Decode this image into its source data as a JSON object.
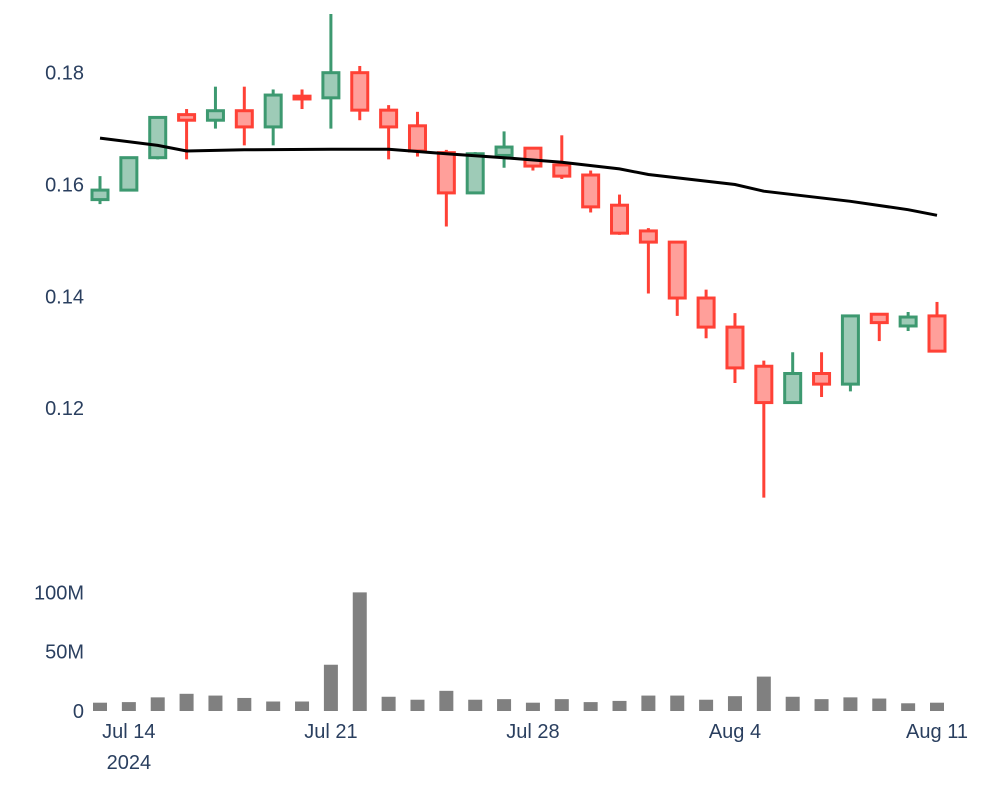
{
  "chart_data": [
    {
      "type": "candlestick",
      "colors": {
        "increasing": "#3d9970",
        "increasing_fill": "#9ecbb7",
        "decreasing": "#ff4136",
        "decreasing_fill": "#ff9f9a",
        "moving_average": "#000000"
      },
      "grid": false,
      "ylim": [
        0.1,
        0.193
      ],
      "y_ticks": [
        {
          "value": 0.12,
          "label": "0.12"
        },
        {
          "value": 0.14,
          "label": "0.14"
        },
        {
          "value": 0.16,
          "label": "0.16"
        },
        {
          "value": 0.18,
          "label": "0.18"
        }
      ],
      "candles": [
        {
          "date": "2024-07-13",
          "open": 0.1573,
          "high": 0.1615,
          "low": 0.1565,
          "close": 0.159
        },
        {
          "date": "2024-07-14",
          "open": 0.159,
          "high": 0.165,
          "low": 0.1588,
          "close": 0.1648
        },
        {
          "date": "2024-07-15",
          "open": 0.1648,
          "high": 0.1722,
          "low": 0.1645,
          "close": 0.172
        },
        {
          "date": "2024-07-16",
          "open": 0.1725,
          "high": 0.1735,
          "low": 0.1645,
          "close": 0.1715
        },
        {
          "date": "2024-07-17",
          "open": 0.1715,
          "high": 0.1775,
          "low": 0.17,
          "close": 0.1732
        },
        {
          "date": "2024-07-18",
          "open": 0.1732,
          "high": 0.1775,
          "low": 0.167,
          "close": 0.1703
        },
        {
          "date": "2024-07-19",
          "open": 0.1703,
          "high": 0.177,
          "low": 0.167,
          "close": 0.176
        },
        {
          "date": "2024-07-20",
          "open": 0.1758,
          "high": 0.177,
          "low": 0.1735,
          "close": 0.1753
        },
        {
          "date": "2024-07-21",
          "open": 0.1755,
          "high": 0.1905,
          "low": 0.17,
          "close": 0.18
        },
        {
          "date": "2024-07-22",
          "open": 0.18,
          "high": 0.1812,
          "low": 0.1715,
          "close": 0.1733
        },
        {
          "date": "2024-07-23",
          "open": 0.1733,
          "high": 0.1742,
          "low": 0.1645,
          "close": 0.1703
        },
        {
          "date": "2024-07-24",
          "open": 0.1705,
          "high": 0.173,
          "low": 0.165,
          "close": 0.166
        },
        {
          "date": "2024-07-25",
          "open": 0.1657,
          "high": 0.1662,
          "low": 0.1525,
          "close": 0.1585
        },
        {
          "date": "2024-07-26",
          "open": 0.1585,
          "high": 0.1658,
          "low": 0.1583,
          "close": 0.1655
        },
        {
          "date": "2024-07-27",
          "open": 0.1652,
          "high": 0.1695,
          "low": 0.163,
          "close": 0.1667
        },
        {
          "date": "2024-07-28",
          "open": 0.1665,
          "high": 0.1667,
          "low": 0.1625,
          "close": 0.1633
        },
        {
          "date": "2024-07-29",
          "open": 0.1635,
          "high": 0.1688,
          "low": 0.161,
          "close": 0.1615
        },
        {
          "date": "2024-07-30",
          "open": 0.1617,
          "high": 0.1625,
          "low": 0.155,
          "close": 0.156
        },
        {
          "date": "2024-07-31",
          "open": 0.1563,
          "high": 0.1582,
          "low": 0.151,
          "close": 0.1513
        },
        {
          "date": "2024-08-01",
          "open": 0.1517,
          "high": 0.1522,
          "low": 0.1405,
          "close": 0.1497
        },
        {
          "date": "2024-08-02",
          "open": 0.1497,
          "high": 0.1497,
          "low": 0.1365,
          "close": 0.1397
        },
        {
          "date": "2024-08-03",
          "open": 0.1397,
          "high": 0.1412,
          "low": 0.1325,
          "close": 0.1345
        },
        {
          "date": "2024-08-04",
          "open": 0.1345,
          "high": 0.137,
          "low": 0.1245,
          "close": 0.1272
        },
        {
          "date": "2024-08-05",
          "open": 0.1275,
          "high": 0.1285,
          "low": 0.104,
          "close": 0.121
        },
        {
          "date": "2024-08-06",
          "open": 0.121,
          "high": 0.13,
          "low": 0.121,
          "close": 0.1262
        },
        {
          "date": "2024-08-07",
          "open": 0.1262,
          "high": 0.13,
          "low": 0.122,
          "close": 0.1243
        },
        {
          "date": "2024-08-08",
          "open": 0.1243,
          "high": 0.1367,
          "low": 0.123,
          "close": 0.1365
        },
        {
          "date": "2024-08-09",
          "open": 0.1368,
          "high": 0.137,
          "low": 0.132,
          "close": 0.1353
        },
        {
          "date": "2024-08-10",
          "open": 0.1347,
          "high": 0.1372,
          "low": 0.1338,
          "close": 0.1363
        },
        {
          "date": "2024-08-11",
          "open": 0.1365,
          "high": 0.139,
          "low": 0.13,
          "close": 0.1302
        }
      ],
      "moving_average": [
        {
          "date": "2024-07-13",
          "value": 0.1683
        },
        {
          "date": "2024-07-15",
          "value": 0.167
        },
        {
          "date": "2024-07-16",
          "value": 0.166
        },
        {
          "date": "2024-07-18",
          "value": 0.1662
        },
        {
          "date": "2024-07-21",
          "value": 0.1663
        },
        {
          "date": "2024-07-23",
          "value": 0.1663
        },
        {
          "date": "2024-07-25",
          "value": 0.1655
        },
        {
          "date": "2024-07-27",
          "value": 0.1648
        },
        {
          "date": "2024-07-29",
          "value": 0.164
        },
        {
          "date": "2024-07-31",
          "value": 0.1628
        },
        {
          "date": "2024-08-01",
          "value": 0.1618
        },
        {
          "date": "2024-08-04",
          "value": 0.16
        },
        {
          "date": "2024-08-05",
          "value": 0.1588
        },
        {
          "date": "2024-08-08",
          "value": 0.157
        },
        {
          "date": "2024-08-10",
          "value": 0.1555
        },
        {
          "date": "2024-08-11",
          "value": 0.1545
        }
      ]
    },
    {
      "type": "bar",
      "color": "#808080",
      "grid": false,
      "ylim": [
        0,
        102000000
      ],
      "y_ticks": [
        {
          "value": 0,
          "label": "0"
        },
        {
          "value": 50000000,
          "label": "50M"
        },
        {
          "value": 100000000,
          "label": "100M"
        }
      ],
      "x_ticks": [
        {
          "date": "2024-07-14",
          "label": "Jul 14",
          "sublabel": "2024"
        },
        {
          "date": "2024-07-21",
          "label": "Jul 21"
        },
        {
          "date": "2024-07-28",
          "label": "Jul 28"
        },
        {
          "date": "2024-08-04",
          "label": "Aug 4"
        },
        {
          "date": "2024-08-11",
          "label": "Aug 11"
        }
      ],
      "volumes": [
        {
          "date": "2024-07-13",
          "value": 7000000
        },
        {
          "date": "2024-07-14",
          "value": 7500000
        },
        {
          "date": "2024-07-15",
          "value": 11500000
        },
        {
          "date": "2024-07-16",
          "value": 14500000
        },
        {
          "date": "2024-07-17",
          "value": 13000000
        },
        {
          "date": "2024-07-18",
          "value": 11000000
        },
        {
          "date": "2024-07-19",
          "value": 8000000
        },
        {
          "date": "2024-07-20",
          "value": 8000000
        },
        {
          "date": "2024-07-21",
          "value": 39000000
        },
        {
          "date": "2024-07-22",
          "value": 100000000
        },
        {
          "date": "2024-07-23",
          "value": 12000000
        },
        {
          "date": "2024-07-24",
          "value": 9500000
        },
        {
          "date": "2024-07-25",
          "value": 17000000
        },
        {
          "date": "2024-07-26",
          "value": 9500000
        },
        {
          "date": "2024-07-27",
          "value": 10000000
        },
        {
          "date": "2024-07-28",
          "value": 7000000
        },
        {
          "date": "2024-07-29",
          "value": 10000000
        },
        {
          "date": "2024-07-30",
          "value": 7500000
        },
        {
          "date": "2024-07-31",
          "value": 8500000
        },
        {
          "date": "2024-08-01",
          "value": 13000000
        },
        {
          "date": "2024-08-02",
          "value": 13000000
        },
        {
          "date": "2024-08-03",
          "value": 9500000
        },
        {
          "date": "2024-08-04",
          "value": 12500000
        },
        {
          "date": "2024-08-05",
          "value": 29000000
        },
        {
          "date": "2024-08-06",
          "value": 12000000
        },
        {
          "date": "2024-08-07",
          "value": 10000000
        },
        {
          "date": "2024-08-08",
          "value": 11500000
        },
        {
          "date": "2024-08-09",
          "value": 10500000
        },
        {
          "date": "2024-08-10",
          "value": 6500000
        },
        {
          "date": "2024-08-11",
          "value": 7000000
        }
      ]
    }
  ]
}
